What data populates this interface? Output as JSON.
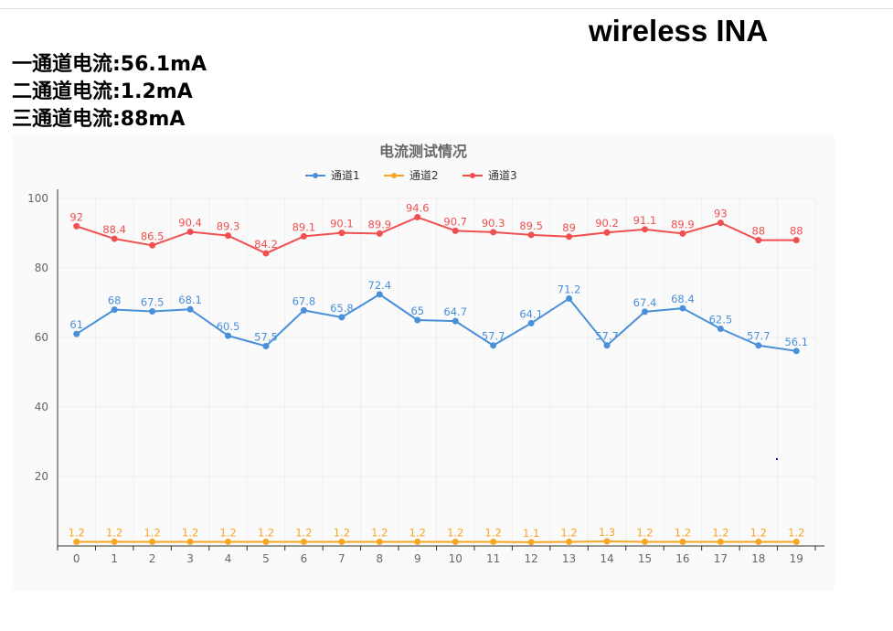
{
  "page": {
    "title": "wireless INA",
    "readings": [
      "一通道电流:56.1mA",
      "二通道电流:1.2mA",
      "三通道电流:88mA"
    ]
  },
  "chart_data": {
    "type": "line",
    "title": "电流测试情况",
    "xlabel": "",
    "ylabel": "",
    "categories": [
      0,
      1,
      2,
      3,
      4,
      5,
      6,
      7,
      8,
      9,
      10,
      11,
      12,
      13,
      14,
      15,
      16,
      17,
      18,
      19
    ],
    "ylim": [
      0,
      100
    ],
    "yticks": [
      20,
      40,
      60,
      80,
      100
    ],
    "grid": true,
    "legend": "top-center",
    "series": [
      {
        "name": "通道1",
        "color": "#4a90d9",
        "values": [
          61,
          68,
          67.5,
          68.1,
          60.5,
          57.5,
          67.8,
          65.8,
          72.4,
          65,
          64.7,
          57.7,
          64.1,
          71.2,
          57.7,
          67.4,
          68.4,
          62.5,
          57.7,
          56.1
        ]
      },
      {
        "name": "通道2",
        "color": "#f5a623",
        "values": [
          1.2,
          1.2,
          1.2,
          1.2,
          1.2,
          1.2,
          1.2,
          1.2,
          1.2,
          1.2,
          1.2,
          1.2,
          1.1,
          1.2,
          1.3,
          1.2,
          1.2,
          1.2,
          1.2,
          1.2
        ]
      },
      {
        "name": "通道3",
        "color": "#f05050",
        "values": [
          92,
          88.4,
          86.5,
          90.4,
          89.3,
          84.2,
          89.1,
          90.1,
          89.9,
          94.6,
          90.7,
          90.3,
          89.5,
          89,
          90.2,
          91.1,
          89.9,
          93,
          88,
          88
        ]
      }
    ]
  }
}
